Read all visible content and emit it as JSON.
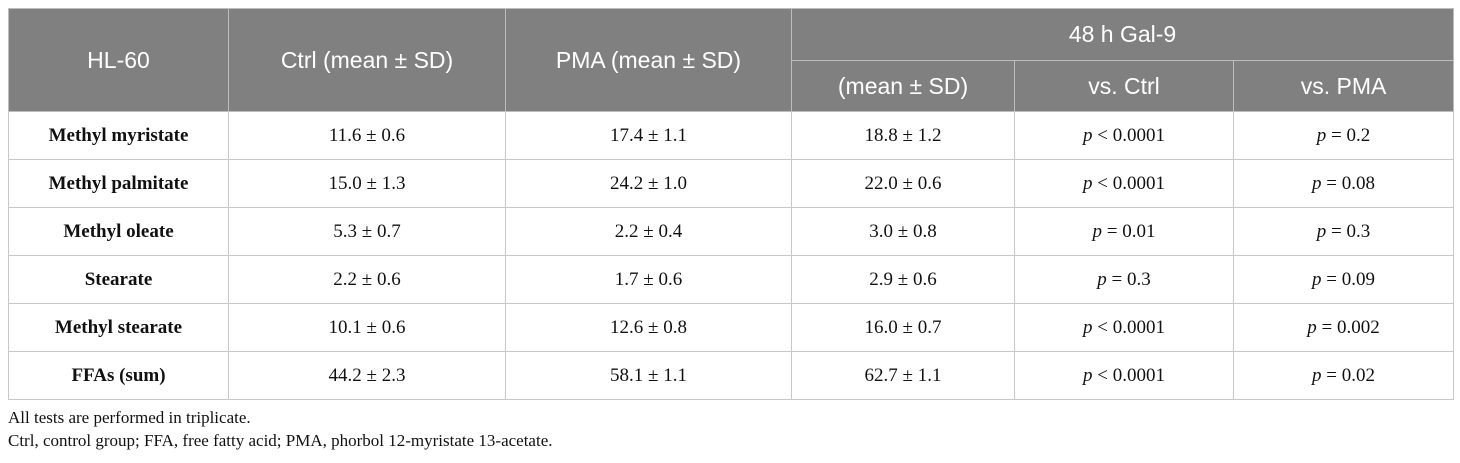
{
  "table": {
    "header": {
      "col0": "HL-60",
      "col1": "Ctrl (mean ± SD)",
      "col2": "PMA (mean ± SD)",
      "group": "48 h Gal-9",
      "sub1": "(mean ± SD)",
      "sub2": "vs. Ctrl",
      "sub3": "vs. PMA"
    },
    "rows": [
      {
        "label": "Methyl myristate",
        "ctrl": "11.6 ± 0.6",
        "pma": "17.4 ± 1.1",
        "gal9": "18.8 ± 1.2",
        "vs_ctrl": {
          "p": "p",
          "rest": " < 0.0001"
        },
        "vs_pma": {
          "p": "p",
          "rest": " = 0.2"
        }
      },
      {
        "label": "Methyl palmitate",
        "ctrl": "15.0 ± 1.3",
        "pma": "24.2 ± 1.0",
        "gal9": "22.0 ± 0.6",
        "vs_ctrl": {
          "p": "p",
          "rest": " < 0.0001"
        },
        "vs_pma": {
          "p": "p",
          "rest": " = 0.08"
        }
      },
      {
        "label": "Methyl oleate",
        "ctrl": "5.3 ± 0.7",
        "pma": "2.2 ± 0.4",
        "gal9": "3.0 ± 0.8",
        "vs_ctrl": {
          "p": "p",
          "rest": " = 0.01"
        },
        "vs_pma": {
          "p": "p",
          "rest": " = 0.3"
        }
      },
      {
        "label": "Stearate",
        "ctrl": "2.2 ± 0.6",
        "pma": "1.7 ± 0.6",
        "gal9": "2.9 ± 0.6",
        "vs_ctrl": {
          "p": "p",
          "rest": " = 0.3"
        },
        "vs_pma": {
          "p": "p",
          "rest": " = 0.09"
        }
      },
      {
        "label": "Methyl stearate",
        "ctrl": "10.1 ± 0.6",
        "pma": "12.6 ± 0.8",
        "gal9": "16.0 ± 0.7",
        "vs_ctrl": {
          "p": "p",
          "rest": " < 0.0001"
        },
        "vs_pma": {
          "p": "p",
          "rest": " = 0.002"
        }
      },
      {
        "label": "FFAs (sum)",
        "ctrl": "44.2 ± 2.3",
        "pma": "58.1 ± 1.1",
        "gal9": "62.7 ± 1.1",
        "vs_ctrl": {
          "p": "p",
          "rest": " < 0.0001"
        },
        "vs_pma": {
          "p": "p",
          "rest": " = 0.02"
        }
      }
    ]
  },
  "notes": {
    "line1": "All tests are performed in triplicate.",
    "line2": "Ctrl, control group; FFA, free fatty acid; PMA, phorbol 12-myristate 13-acetate."
  },
  "colors": {
    "header_bg": "#808080",
    "header_text": "#ffffff",
    "grid": "#c8c8c8"
  }
}
